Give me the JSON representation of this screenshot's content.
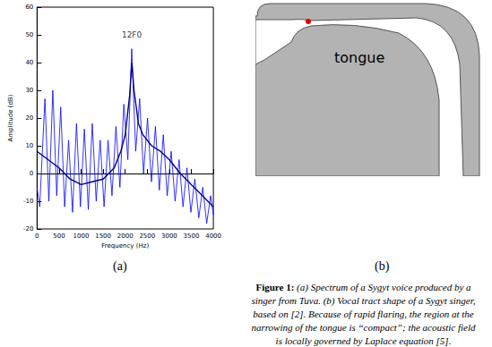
{
  "panel_labels": [
    "(a)",
    "(b)"
  ],
  "chart_data": {
    "type": "line",
    "x_label": "Frequency (Hz)",
    "y_label": "Amplitude (dB)",
    "xlim": [
      0,
      4000
    ],
    "xticks": [
      0,
      500,
      1000,
      1500,
      2000,
      2500,
      3000,
      3500,
      4000
    ],
    "ylim": [
      -20,
      60
    ],
    "yticks": [
      -20,
      -10,
      0,
      10,
      20,
      30,
      40,
      50,
      60
    ],
    "grid": false,
    "series": [
      {
        "color": "#0000ff",
        "x": [
          0,
          60,
          179,
          268,
          358,
          447,
          537,
          626,
          716,
          805,
          895,
          984,
          1074,
          1163,
          1253,
          1342,
          1432,
          1521,
          1611,
          1700,
          1790,
          1880,
          1969,
          2060,
          2148,
          2238,
          2327,
          2416,
          2506,
          2595,
          2685,
          2774,
          2864,
          2953,
          3043,
          3132,
          3222,
          3311,
          3401,
          3490,
          3580,
          3669,
          3759,
          3848,
          3938,
          4000
        ],
        "values": [
          -5,
          -12,
          27,
          -10,
          30,
          -8,
          24,
          -12,
          12,
          -14,
          18,
          -12,
          16,
          -13,
          18,
          -10,
          12,
          -12,
          12,
          -8,
          17,
          -5,
          25,
          5,
          45,
          8,
          27,
          0,
          20,
          -3,
          17,
          -6,
          14,
          -8,
          8,
          -10,
          5,
          -12,
          2,
          -14,
          -2,
          -16,
          -5,
          -18,
          -8,
          -15
        ]
      },
      {
        "color": "#00008b",
        "x": [
          0,
          250,
          500,
          750,
          1000,
          1250,
          1500,
          1750,
          1900,
          2000,
          2100,
          2150,
          2200,
          2300,
          2400,
          2600,
          2800,
          3000,
          3250,
          3500,
          3750,
          4000
        ],
        "values": [
          8,
          5,
          2,
          -2,
          -4,
          -3,
          -2,
          2,
          8,
          14,
          28,
          40,
          30,
          18,
          14,
          10,
          8,
          5,
          0,
          -4,
          -8,
          -12
        ]
      }
    ],
    "annotations": [
      {
        "text": "12F0",
        "x": 2150,
        "y": 50
      }
    ]
  },
  "diagram": {
    "label": "tongue"
  },
  "caption": {
    "label": "Figure 1:",
    "lines": [
      "(a) Spectrum of a Sygyt voice produced by a",
      "singer from Tuva. (b) Vocal tract shape of a Sygyt singer,",
      "based on [2]. Because of rapid flaring, the region at the",
      "narrowing of the tongue is “compact”; the acoustic field",
      "is locally governed by Laplace equation [5]."
    ]
  }
}
